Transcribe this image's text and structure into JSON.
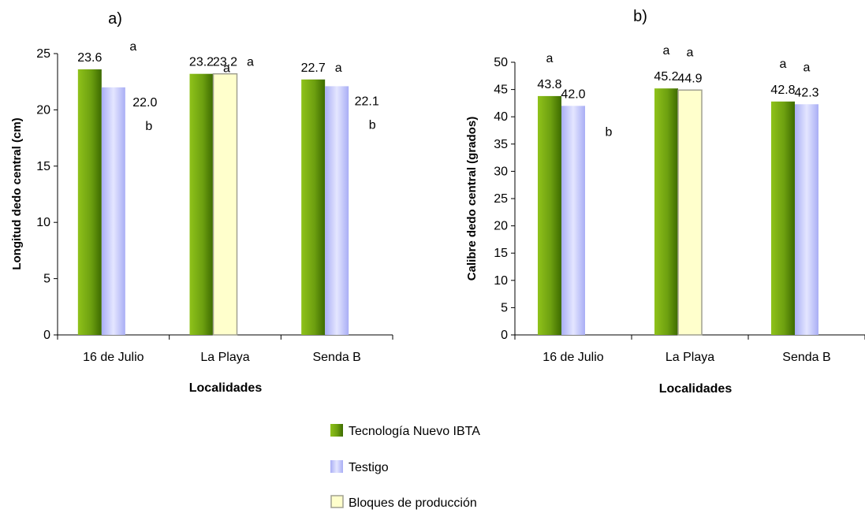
{
  "legend": {
    "items": [
      {
        "label": "Tecnología Nuevo IBTA",
        "style": "green"
      },
      {
        "label": "Testigo",
        "style": "lavender"
      },
      {
        "label": "Bloques de producción",
        "style": "cream"
      }
    ]
  },
  "colors": {
    "green_dark": "#3d6b00",
    "green_light": "#8fc21a",
    "lavender_light": "#e4e6ff",
    "lavender_dark": "#a9aef5",
    "cream_fill": "#ffffcc",
    "cream_stroke": "#a0a090"
  },
  "chart_data": [
    {
      "type": "bar",
      "panel_label": "a)",
      "title": "",
      "xlabel": "Localidades",
      "ylabel": "Longitud dedo central (cm)",
      "ylim": [
        0,
        25
      ],
      "yticks": [
        0,
        5,
        10,
        15,
        20,
        25
      ],
      "grid": false,
      "legend_position": "bottom",
      "categories": [
        "16 de Julio",
        "La Playa",
        "Senda B"
      ],
      "series": [
        {
          "name": "Tecnología Nuevo IBTA",
          "values": [
            23.6,
            23.2,
            22.7
          ],
          "labels": [
            "23.6",
            "23.2",
            "22.7"
          ],
          "letters": [
            "a",
            "a",
            "a"
          ]
        },
        {
          "name": "Testigo",
          "values": [
            22.0,
            null,
            22.1
          ],
          "labels": [
            "22.0",
            "",
            "22.1"
          ],
          "letters": [
            "b",
            "",
            "b"
          ]
        },
        {
          "name": "Bloques de producción",
          "values": [
            null,
            23.2,
            null
          ],
          "labels": [
            "",
            "23.2",
            ""
          ],
          "letters": [
            "",
            "a",
            ""
          ]
        }
      ]
    },
    {
      "type": "bar",
      "panel_label": "b)",
      "title": "",
      "xlabel": "Localidades",
      "ylabel": "Calibre dedo central (grados)",
      "ylim": [
        0,
        50
      ],
      "yticks": [
        0,
        5,
        10,
        15,
        20,
        25,
        30,
        35,
        40,
        45,
        50
      ],
      "grid": false,
      "legend_position": "bottom",
      "categories": [
        "16 de Julio",
        "La Playa",
        "Senda B"
      ],
      "series": [
        {
          "name": "Tecnología Nuevo IBTA",
          "values": [
            43.8,
            45.2,
            42.8
          ],
          "labels": [
            "43.8",
            "45.2",
            "42.8"
          ],
          "letters": [
            "a",
            "a",
            "a"
          ]
        },
        {
          "name": "Testigo",
          "values": [
            42.0,
            null,
            42.3
          ],
          "labels": [
            "42.0",
            "",
            "42.3"
          ],
          "letters": [
            "b",
            "",
            "a"
          ]
        },
        {
          "name": "Bloques de producción",
          "values": [
            null,
            44.9,
            null
          ],
          "labels": [
            "",
            "44.9",
            ""
          ],
          "letters": [
            "",
            "a",
            ""
          ]
        }
      ]
    }
  ]
}
